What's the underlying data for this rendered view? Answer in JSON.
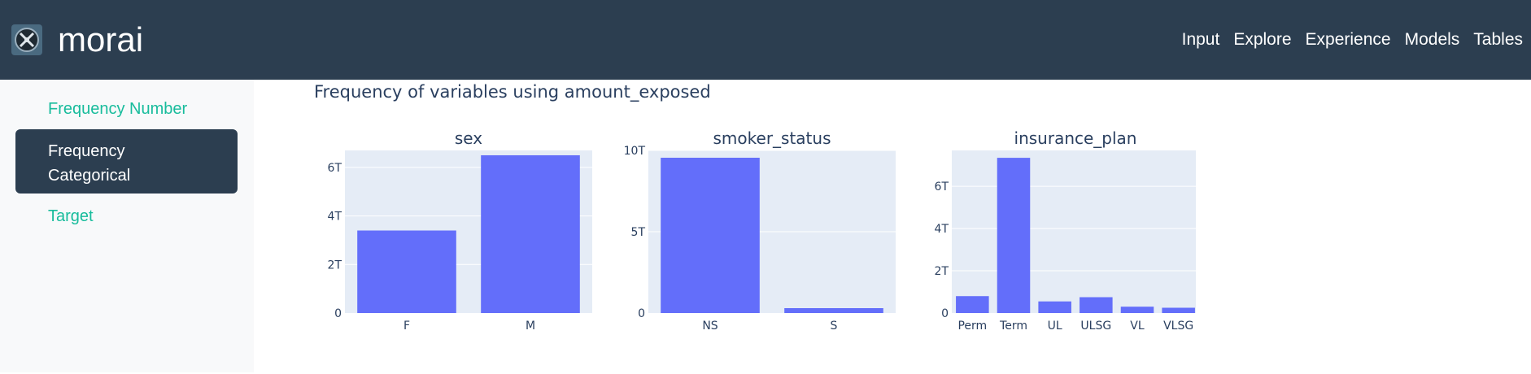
{
  "header": {
    "brand": "morai",
    "nav": [
      "Input",
      "Explore",
      "Experience",
      "Models",
      "Tables"
    ]
  },
  "sidebar": {
    "items": [
      {
        "label": "Frequency Number",
        "active": false
      },
      {
        "label": "Frequency Categorical",
        "active": true
      },
      {
        "label": "Target",
        "active": false
      }
    ]
  },
  "main": {
    "title": "Frequency of variables using amount_exposed"
  },
  "colors": {
    "bar": "#636efa",
    "plot_bg": "#e5ecf6",
    "text": "#2a3f5f",
    "navbar": "#2c3e50",
    "sidebar_link": "#18bc9c"
  },
  "chart_data": [
    {
      "type": "bar",
      "title": "sex",
      "categories": [
        "F",
        "M"
      ],
      "values": [
        3.4,
        6.5
      ],
      "unit": "T",
      "ylim": [
        0,
        6.7
      ],
      "yticks": [
        0,
        2,
        4,
        6
      ],
      "ytick_labels": [
        "0",
        "2T",
        "4T",
        "6T"
      ]
    },
    {
      "type": "bar",
      "title": "smoker_status",
      "categories": [
        "NS",
        "S"
      ],
      "values": [
        9.55,
        0.3
      ],
      "unit": "T",
      "ylim": [
        0,
        10
      ],
      "yticks": [
        0,
        5,
        10
      ],
      "ytick_labels": [
        "0",
        "5T",
        "10T"
      ]
    },
    {
      "type": "bar",
      "title": "insurance_plan",
      "categories": [
        "Perm",
        "Term",
        "UL",
        "ULSG",
        "VL",
        "VLSG"
      ],
      "values": [
        0.8,
        7.35,
        0.55,
        0.75,
        0.3,
        0.25
      ],
      "unit": "T",
      "ylim": [
        0,
        7.7
      ],
      "yticks": [
        0,
        2,
        4,
        6
      ],
      "ytick_labels": [
        "0",
        "2T",
        "4T",
        "6T"
      ]
    }
  ]
}
